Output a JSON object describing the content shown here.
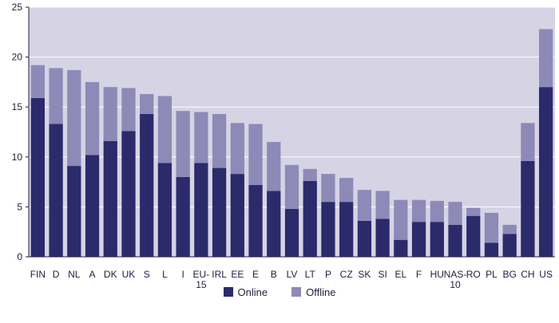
{
  "chart_data": {
    "type": "bar",
    "stacked": true,
    "title": "",
    "xlabel": "",
    "ylabel": "",
    "ylim": [
      0,
      25
    ],
    "yticks": [
      0,
      5,
      10,
      15,
      20,
      25
    ],
    "grid": true,
    "legend_position": "bottom",
    "categories": [
      "FIN",
      "D",
      "NL",
      "A",
      "DK",
      "UK",
      "S",
      "L",
      "I",
      "EU-\n15",
      "IRL",
      "EE",
      "E",
      "B",
      "LV",
      "LT",
      "P",
      "CZ",
      "SK",
      "SI",
      "EL",
      "F",
      "HU",
      "NAS-\n10",
      "RO",
      "PL",
      "BG",
      "CH",
      "US"
    ],
    "series": [
      {
        "name": "Online",
        "color": "#2b2a6b",
        "values": [
          15.9,
          13.3,
          9.1,
          10.2,
          11.6,
          12.6,
          14.3,
          9.4,
          8.0,
          9.4,
          8.9,
          8.3,
          7.2,
          6.6,
          4.8,
          7.6,
          5.5,
          5.5,
          3.6,
          3.8,
          1.7,
          3.5,
          3.5,
          3.2,
          4.1,
          1.4,
          2.3,
          9.6,
          17.0
        ]
      },
      {
        "name": "Offline",
        "color": "#8d8ab8",
        "values": [
          3.3,
          5.6,
          9.6,
          7.3,
          5.4,
          4.3,
          2.0,
          6.7,
          6.6,
          5.1,
          5.4,
          5.1,
          6.1,
          4.9,
          4.4,
          1.2,
          2.8,
          2.4,
          3.1,
          2.8,
          4.0,
          2.2,
          2.1,
          2.3,
          0.8,
          3.0,
          0.9,
          3.8,
          5.8
        ]
      }
    ]
  },
  "colors": {
    "plot_background": "#d6d3e5",
    "gridline": "#ffffff",
    "axis": "#1f1f40"
  },
  "legend": {
    "online": "Online",
    "offline": "Offline"
  }
}
